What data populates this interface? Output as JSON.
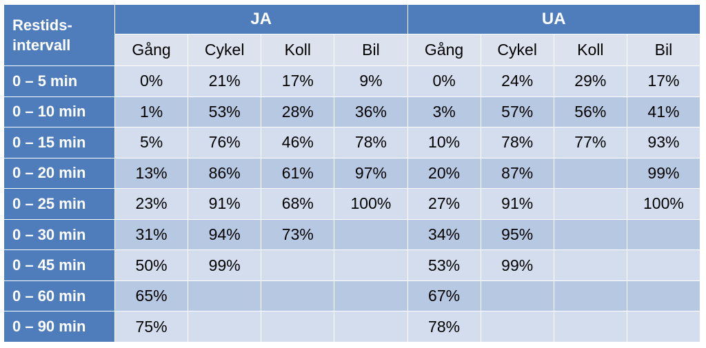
{
  "corner": [
    "Restids-",
    "intervall"
  ],
  "groups": [
    "JA",
    "UA"
  ],
  "subheaders": [
    "Gång",
    "Cykel",
    "Koll",
    "Bil",
    "Gång",
    "Cykel",
    "Koll",
    "Bil"
  ],
  "rows": [
    {
      "label": "0 – 5 min",
      "cells": [
        "0%",
        "21%",
        "17%",
        "9%",
        "0%",
        "24%",
        "29%",
        "17%"
      ]
    },
    {
      "label": "0 – 10 min",
      "cells": [
        "1%",
        "53%",
        "28%",
        "36%",
        "3%",
        "57%",
        "56%",
        "41%"
      ]
    },
    {
      "label": "0 – 15 min",
      "cells": [
        "5%",
        "76%",
        "46%",
        "78%",
        "10%",
        "78%",
        "77%",
        "93%"
      ]
    },
    {
      "label": "0 – 20 min",
      "cells": [
        "13%",
        "86%",
        "61%",
        "97%",
        "20%",
        "87%",
        "",
        "99%"
      ]
    },
    {
      "label": "0 – 25 min",
      "cells": [
        "23%",
        "91%",
        "68%",
        "100%",
        "27%",
        "91%",
        "",
        "100%"
      ]
    },
    {
      "label": "0 – 30 min",
      "cells": [
        "31%",
        "94%",
        "73%",
        "",
        "34%",
        "95%",
        "",
        ""
      ]
    },
    {
      "label": "0 – 45 min",
      "cells": [
        "50%",
        "99%",
        "",
        "",
        "53%",
        "99%",
        "",
        ""
      ]
    },
    {
      "label": "0 – 60 min",
      "cells": [
        "65%",
        "",
        "",
        "",
        "67%",
        "",
        "",
        ""
      ]
    },
    {
      "label": "0 – 90 min",
      "cells": [
        "75%",
        "",
        "",
        "",
        "78%",
        "",
        "",
        ""
      ]
    }
  ]
}
